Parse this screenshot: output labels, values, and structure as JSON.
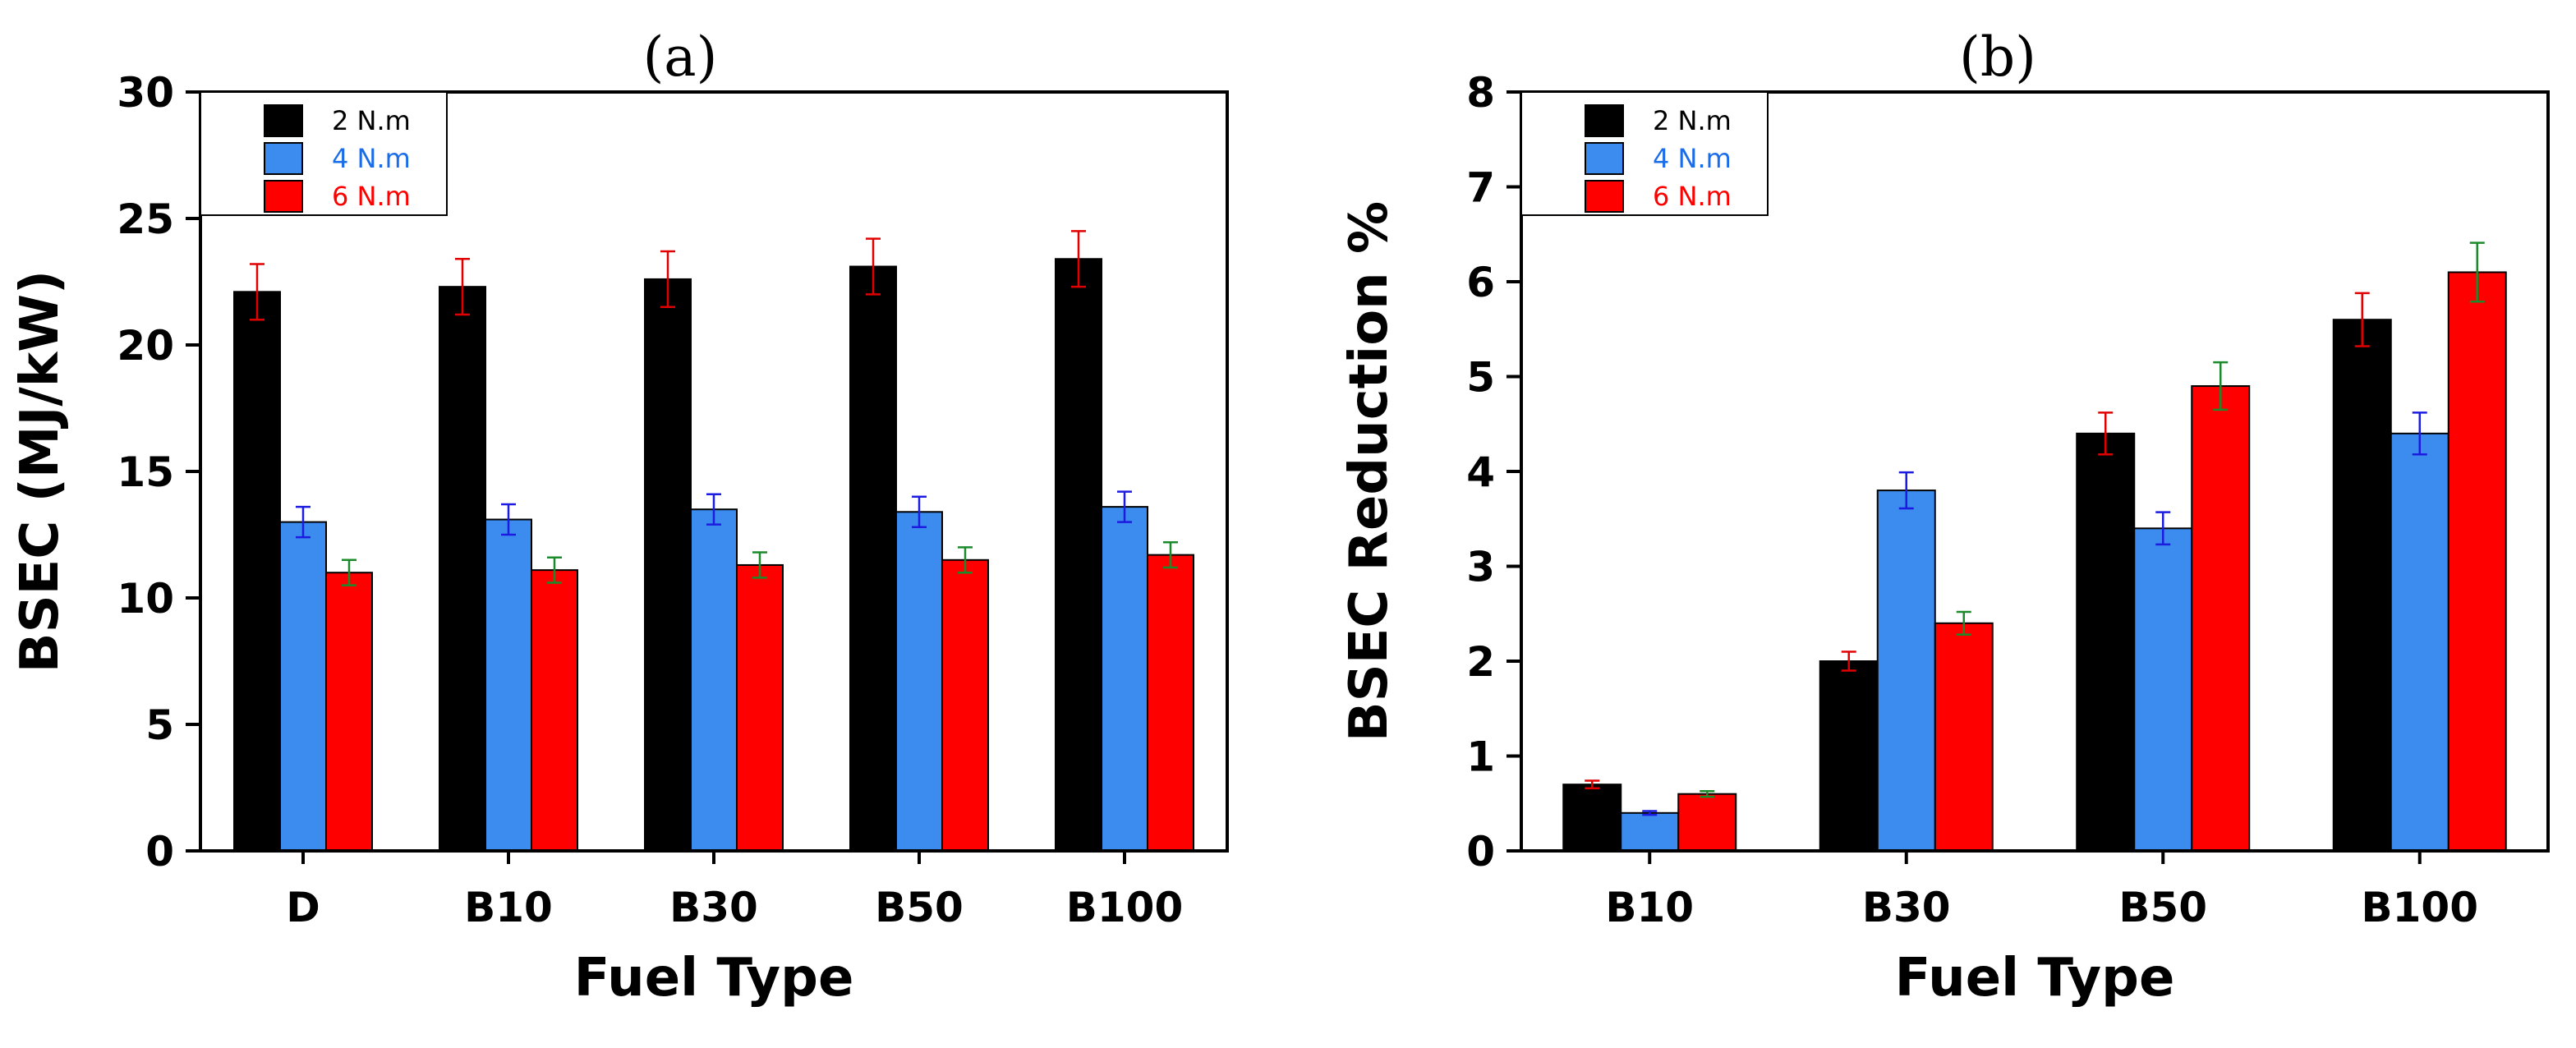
{
  "chart_data": [
    {
      "panel_label": "(a)",
      "type": "bar",
      "xlabel": "Fuel Type",
      "ylabel": "BSEC (MJ/kW)",
      "ylim": [
        0,
        30
      ],
      "yticks": [
        0,
        5,
        10,
        15,
        20,
        25,
        30
      ],
      "categories": [
        "D",
        "B10",
        "B30",
        "B50",
        "B100"
      ],
      "series": [
        {
          "name": "2 N.m",
          "color": "#000000",
          "label_color": "#000000",
          "errorbar_color": "#e00000",
          "values": [
            22.1,
            22.3,
            22.6,
            23.1,
            23.4
          ],
          "errors": [
            1.1,
            1.1,
            1.1,
            1.1,
            1.1
          ]
        },
        {
          "name": "4 N.m",
          "color": "#3c8cf0",
          "label_color": "#1a6ce8",
          "errorbar_color": "#1c1ce0",
          "values": [
            13.0,
            13.1,
            13.5,
            13.4,
            13.6
          ],
          "errors": [
            0.6,
            0.6,
            0.6,
            0.6,
            0.6
          ]
        },
        {
          "name": "6 N.m",
          "color": "#ff0000",
          "label_color": "#ff0000",
          "errorbar_color": "#1a8a2a",
          "values": [
            11.0,
            11.1,
            11.3,
            11.5,
            11.7
          ],
          "errors": [
            0.5,
            0.5,
            0.5,
            0.5,
            0.5
          ]
        }
      ],
      "legend_position": "top-left",
      "grid": false
    },
    {
      "panel_label": "(b)",
      "type": "bar",
      "xlabel": "Fuel Type",
      "ylabel": "BSEC Reduction %",
      "ylim": [
        0,
        8
      ],
      "yticks": [
        0,
        1,
        2,
        3,
        4,
        5,
        6,
        7,
        8
      ],
      "categories": [
        "B10",
        "B30",
        "B50",
        "B100"
      ],
      "series": [
        {
          "name": "2 N.m",
          "color": "#000000",
          "label_color": "#000000",
          "errorbar_color": "#e00000",
          "values": [
            0.7,
            2.0,
            4.4,
            5.6
          ],
          "errors": [
            0.04,
            0.1,
            0.22,
            0.28
          ]
        },
        {
          "name": "4 N.m",
          "color": "#3c8cf0",
          "label_color": "#1a6ce8",
          "errorbar_color": "#1c1ce0",
          "values": [
            0.4,
            3.8,
            3.4,
            4.4
          ],
          "errors": [
            0.02,
            0.19,
            0.17,
            0.22
          ]
        },
        {
          "name": "6 N.m",
          "color": "#ff0000",
          "label_color": "#ff0000",
          "errorbar_color": "#1a8a2a",
          "values": [
            0.6,
            2.4,
            4.9,
            6.1
          ],
          "errors": [
            0.03,
            0.12,
            0.25,
            0.31
          ]
        }
      ],
      "legend_position": "top-left",
      "grid": false
    }
  ]
}
